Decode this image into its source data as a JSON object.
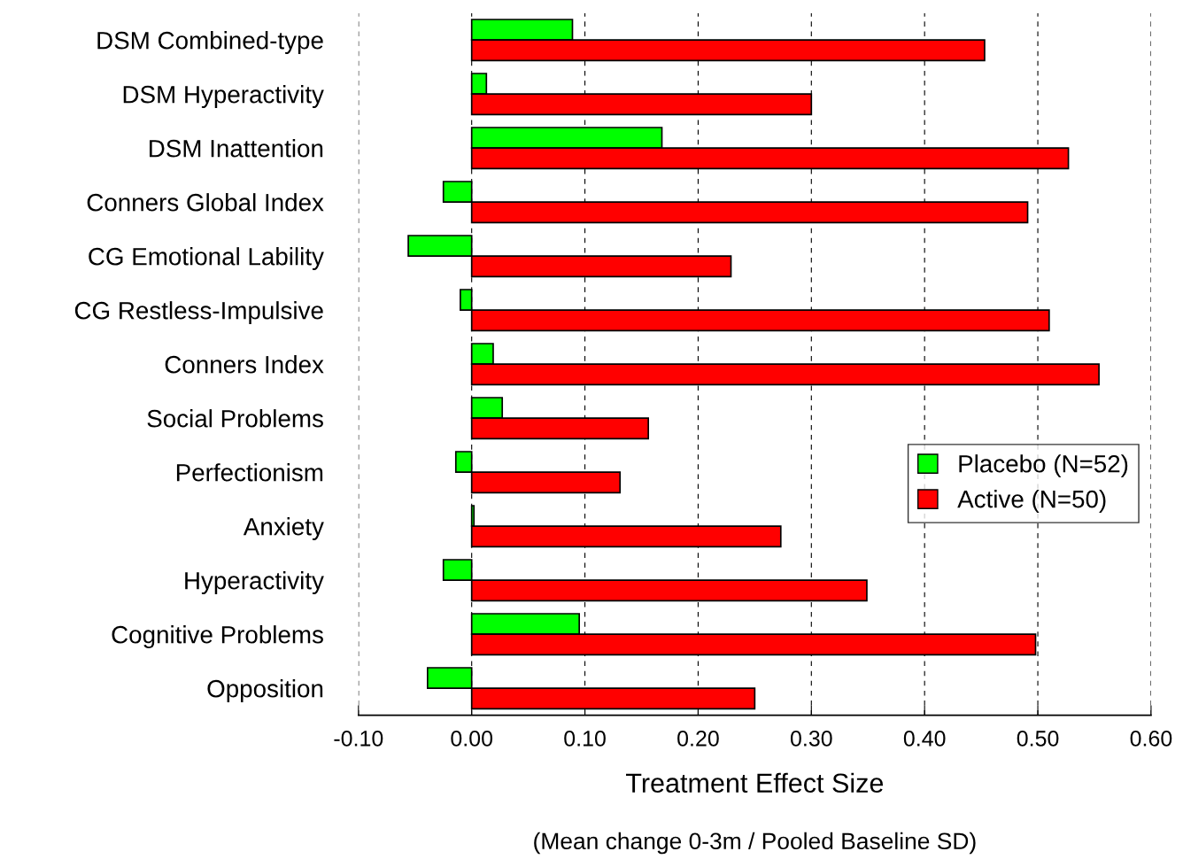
{
  "chart_data": {
    "type": "bar",
    "orientation": "horizontal",
    "categories": [
      "DSM Combined-type",
      "DSM Hyperactivity",
      "DSM Inattention",
      "Conners Global Index",
      "CG Emotional Lability",
      "CG Restless-Impulsive",
      "Conners Index",
      "Social Problems",
      "Perfectionism",
      "Anxiety",
      "Hyperactivity",
      "Cognitive Problems",
      "Opposition"
    ],
    "series": [
      {
        "name": "Placebo (N=52)",
        "color": "#00ff00",
        "values": [
          0.089,
          0.013,
          0.168,
          -0.025,
          -0.056,
          -0.01,
          0.019,
          0.027,
          -0.014,
          0.002,
          -0.025,
          0.095,
          -0.039
        ]
      },
      {
        "name": "Active (N=50)",
        "color": "#ff0000",
        "values": [
          0.453,
          0.3,
          0.527,
          0.491,
          0.229,
          0.51,
          0.554,
          0.156,
          0.131,
          0.273,
          0.349,
          0.498,
          0.25
        ]
      }
    ],
    "xlabel": "Treatment Effect Size",
    "annotations": [
      "(Mean change 0-3m / Pooled Baseline SD)"
    ],
    "xlim": [
      -0.1,
      0.6
    ],
    "xticks": [
      {
        "value": -0.1,
        "label": "-0.10"
      },
      {
        "value": 0,
        "label": "0.00"
      },
      {
        "value": 0.1,
        "label": "0.10"
      },
      {
        "value": 0.2,
        "label": "0.20"
      },
      {
        "value": 0.3,
        "label": "0.30"
      },
      {
        "value": 0.4,
        "label": "0.40"
      },
      {
        "value": 0.5,
        "label": "0.50"
      },
      {
        "value": 0.6,
        "label": "0.60"
      }
    ],
    "grid": "x",
    "legend": "right"
  }
}
